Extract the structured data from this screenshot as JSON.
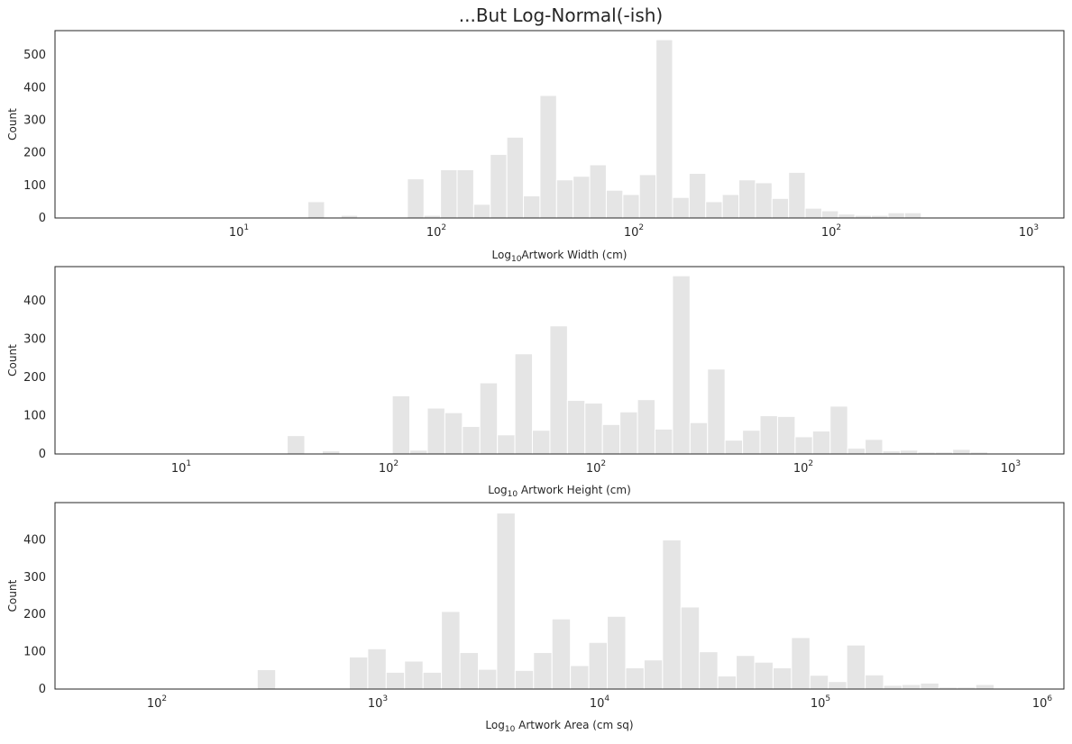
{
  "figure": {
    "title": "...But Log-Normal(-ish)"
  },
  "chart_data": [
    {
      "type": "bar",
      "title": "...But Log-Normal(-ish)",
      "xlabel": "Log10Artwork Width (cm)",
      "ylabel": "Count",
      "yticks": [
        0,
        100,
        200,
        300,
        400,
        500
      ],
      "ylim": [
        0,
        575
      ],
      "xlim_log10": [
        0.25,
        3.05
      ],
      "xtick_labels": [
        {
          "base": "10",
          "exp": "1"
        },
        {
          "base": "10",
          "exp": "2"
        },
        {
          "base": "10",
          "exp": "2"
        },
        {
          "base": "10",
          "exp": "2"
        },
        {
          "base": "10",
          "exp": "3"
        }
      ],
      "bin_start_log10": 0.4,
      "bin_width_log10": 0.046,
      "values": [
        1,
        1,
        1,
        1,
        1,
        2,
        1,
        1,
        1,
        1,
        1,
        1,
        50,
        2,
        8,
        1,
        2,
        1,
        120,
        8,
        148,
        148,
        42,
        195,
        248,
        68,
        376,
        117,
        128,
        163,
        85,
        72,
        133,
        547,
        63,
        137,
        50,
        72,
        117,
        108,
        60,
        140,
        30,
        22,
        12,
        8,
        8,
        16,
        16,
        1,
        1
      ]
    },
    {
      "type": "bar",
      "xlabel": "Log10 Artwork Height (cm)",
      "ylabel": "Count",
      "yticks": [
        0,
        100,
        200,
        300,
        400
      ],
      "ylim": [
        0,
        490
      ],
      "xlim_log10": [
        0.4,
        3.05
      ],
      "xtick_labels": [
        {
          "base": "10",
          "exp": "1"
        },
        {
          "base": "10",
          "exp": "2"
        },
        {
          "base": "10",
          "exp": "2"
        },
        {
          "base": "10",
          "exp": "2"
        },
        {
          "base": "10",
          "exp": "3"
        }
      ],
      "bin_start_log10": 0.55,
      "bin_width_log10": 0.046,
      "values": [
        1,
        1,
        1,
        1,
        1,
        1,
        1,
        1,
        1,
        1,
        48,
        1,
        8,
        1,
        1,
        1,
        152,
        10,
        120,
        108,
        72,
        186,
        50,
        262,
        62,
        335,
        140,
        133,
        77,
        110,
        142,
        65,
        466,
        82,
        222,
        36,
        62,
        100,
        98,
        45,
        60,
        125,
        15,
        38,
        8,
        10,
        5,
        5,
        12,
        5,
        1
      ]
    },
    {
      "type": "bar",
      "xlabel": "Log10 Artwork Area (cm sq)",
      "ylabel": "Count",
      "yticks": [
        0,
        100,
        200,
        300,
        400
      ],
      "ylim": [
        0,
        500
      ],
      "xlim_log10": [
        1.45,
        6.05
      ],
      "xtick_labels": [
        {
          "base": "10",
          "exp": "2"
        },
        {
          "base": "10",
          "exp": "3"
        },
        {
          "base": "10",
          "exp": "4"
        },
        {
          "base": "10",
          "exp": "5"
        },
        {
          "base": "10",
          "exp": "6"
        }
      ],
      "bin_start_log10": 1.7,
      "bin_width_log10": 0.084,
      "values": [
        1,
        1,
        1,
        1,
        1,
        2,
        2,
        2,
        52,
        1,
        1,
        1,
        1,
        86,
        108,
        45,
        75,
        45,
        208,
        98,
        53,
        472,
        50,
        98,
        188,
        63,
        125,
        195,
        57,
        78,
        400,
        220,
        100,
        35,
        90,
        72,
        57,
        138,
        37,
        20,
        118,
        38,
        10,
        12,
        16,
        5,
        5,
        12,
        1,
        1,
        1
      ]
    }
  ]
}
